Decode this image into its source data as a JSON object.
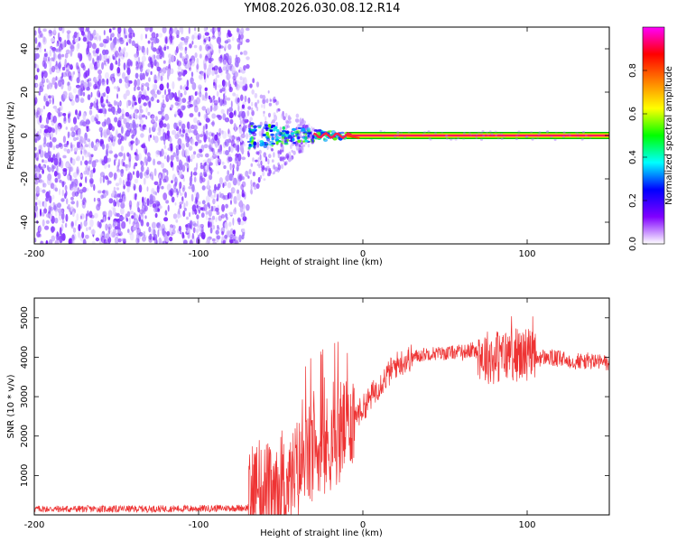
{
  "title": "YM08.2026.030.08.12.R14",
  "chart_data": [
    {
      "type": "heatmap",
      "xlabel": "Height of straight line (km)",
      "ylabel": "Frequency (Hz)",
      "xlim": [
        -200,
        150
      ],
      "ylim": [
        -50,
        50
      ],
      "x_ticks": [
        -200,
        -100,
        0,
        100
      ],
      "y_ticks": [
        -40,
        -20,
        0,
        20,
        40
      ],
      "noise_region_x": [
        -200,
        -70
      ],
      "signal_onset_x": -70,
      "carrier_frequency_hz": 0,
      "colorbar": {
        "label": "Normalized spectral amplitude",
        "range": [
          0,
          1
        ],
        "ticks": [
          0.0,
          0.2,
          0.4,
          0.6,
          0.8
        ],
        "colors": [
          "#ffffff",
          "#8000ff",
          "#0000ff",
          "#00ffff",
          "#00ff00",
          "#ffff00",
          "#ff8000",
          "#ff0000",
          "#ff00ff"
        ]
      }
    },
    {
      "type": "line",
      "xlabel": "Height of straight line (km)",
      "ylabel": "SNR (10 * v/v)",
      "xlim": [
        -200,
        150
      ],
      "ylim": [
        0,
        5500
      ],
      "x_ticks": [
        -200,
        -100,
        0,
        100
      ],
      "y_ticks": [
        1000,
        2000,
        3000,
        4000,
        5000
      ],
      "color": "#ee3333",
      "series": [
        {
          "name": "SNR",
          "x": [
            -200,
            -150,
            -100,
            -70,
            -65,
            -60,
            -55,
            -50,
            -45,
            -40,
            -35,
            -30,
            -25,
            -20,
            -15,
            -10,
            -5,
            0,
            5,
            10,
            15,
            20,
            25,
            30,
            40,
            50,
            60,
            70,
            75,
            80,
            85,
            90,
            95,
            100,
            105,
            110,
            120,
            130,
            140,
            150
          ],
          "values": [
            150,
            150,
            160,
            180,
            700,
            600,
            400,
            650,
            800,
            1100,
            1400,
            1500,
            1600,
            1750,
            2000,
            2300,
            2500,
            2700,
            3000,
            3300,
            3550,
            3800,
            3900,
            4000,
            4100,
            4100,
            4150,
            4150,
            4000,
            4050,
            4000,
            4100,
            4050,
            4100,
            3950,
            4000,
            3950,
            3900,
            3900,
            3850
          ]
        }
      ]
    }
  ]
}
